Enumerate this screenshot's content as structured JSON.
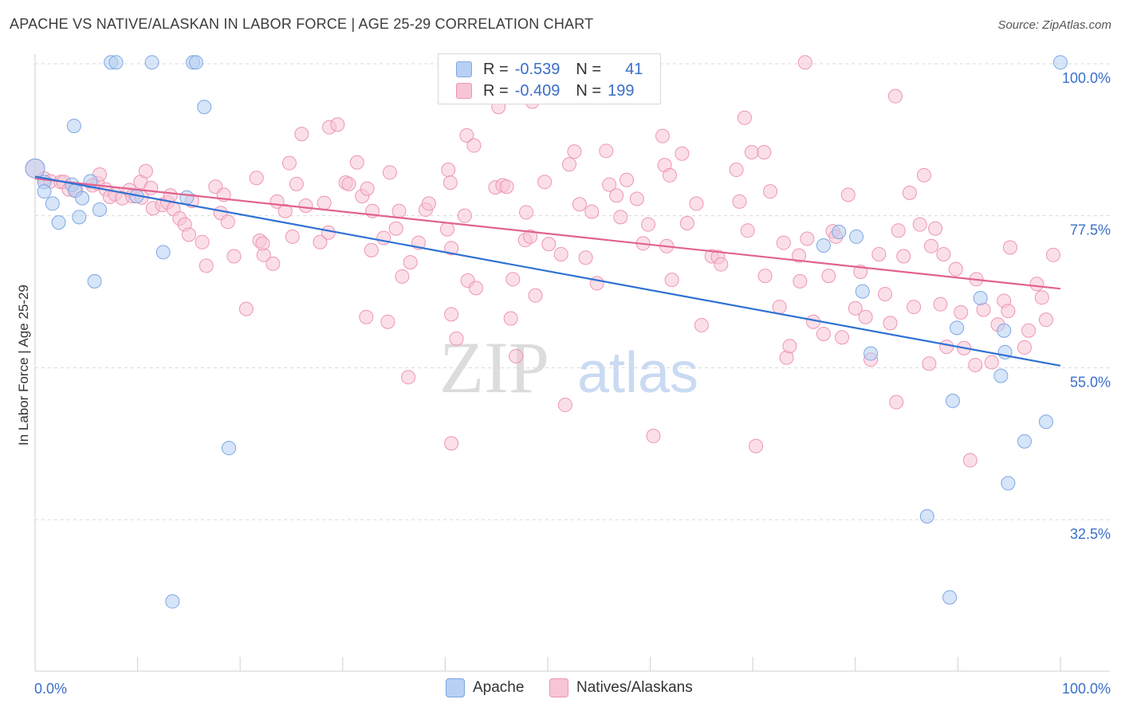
{
  "title": "APACHE VS NATIVE/ALASKAN IN LABOR FORCE | AGE 25-29 CORRELATION CHART",
  "source": "Source: ZipAtlas.com",
  "colors": {
    "apache_fill": "#b7d0f3",
    "apache_stroke": "#7ea7e3",
    "apache_line": "#2e72d2",
    "native_fill": "#f8c5d6",
    "native_stroke": "#ee95b4",
    "native_line": "#e2628f",
    "grid": "#d9d9d9",
    "axis_label": "#3a6fc9"
  },
  "legend": {
    "apache": {
      "r_label": "R =",
      "r_value": "-0.539",
      "n_label": "N =",
      "n_value": "41"
    },
    "native": {
      "r_label": "R =",
      "r_value": "-0.409",
      "n_label": "N =",
      "n_value": "199"
    }
  },
  "chart_data": {
    "type": "scatter",
    "title": "APACHE VS NATIVE/ALASKAN IN LABOR FORCE | AGE 25-29 CORRELATION CHART",
    "xlabel": "",
    "ylabel": "In Labor Force | Age 25-29",
    "xlim": [
      0,
      100
    ],
    "ylim": [
      10,
      100
    ],
    "x_tick_labels": [
      "0.0%",
      "100.0%"
    ],
    "y_ticks": [
      32.5,
      55.0,
      77.5,
      100.0
    ],
    "y_tick_labels": [
      "32.5%",
      "55.0%",
      "77.5%",
      "100.0%"
    ],
    "grid": true,
    "legend_position": "top-center",
    "series": [
      {
        "name": "Apache",
        "trend": {
          "x": [
            0,
            100
          ],
          "y": [
            83.3,
            55.3
          ]
        },
        "points": [
          [
            0,
            84.5
          ],
          [
            0.9,
            82.5
          ],
          [
            0.9,
            81.1
          ],
          [
            1.7,
            79.3
          ],
          [
            2.3,
            76.5
          ],
          [
            3.6,
            82.1
          ],
          [
            3.9,
            81.2
          ],
          [
            3.8,
            90.8
          ],
          [
            4.3,
            77.3
          ],
          [
            4.6,
            80.1
          ],
          [
            5.4,
            82.6
          ],
          [
            5.8,
            67.8
          ],
          [
            6.3,
            78.4
          ],
          [
            7.4,
            100.2
          ],
          [
            7.9,
            100.2
          ],
          [
            9.9,
            80.4
          ],
          [
            11.4,
            100.2
          ],
          [
            12.5,
            72.1
          ],
          [
            14.8,
            80.2
          ],
          [
            15.4,
            100.2
          ],
          [
            15.7,
            100.2
          ],
          [
            16.5,
            93.6
          ],
          [
            18.9,
            43.1
          ],
          [
            13.4,
            20.4
          ],
          [
            76.9,
            73.1
          ],
          [
            78.4,
            75.1
          ],
          [
            80.1,
            74.4
          ],
          [
            80.7,
            66.3
          ],
          [
            81.5,
            57.1
          ],
          [
            87.0,
            33.0
          ],
          [
            89.9,
            60.9
          ],
          [
            89.5,
            50.1
          ],
          [
            92.2,
            65.3
          ],
          [
            94.2,
            53.8
          ],
          [
            94.6,
            57.3
          ],
          [
            94.5,
            60.5
          ],
          [
            96.5,
            44.1
          ],
          [
            98.6,
            47.0
          ],
          [
            89.2,
            21.0
          ],
          [
            94.9,
            37.9
          ],
          [
            100,
            100.2
          ]
        ]
      },
      {
        "name": "Natives/Alaskans",
        "trend": {
          "x": [
            0,
            100
          ],
          "y": [
            83.0,
            66.7
          ]
        },
        "points": [
          [
            0,
            84.5
          ],
          [
            0.9,
            83.0
          ],
          [
            1.5,
            82.6
          ],
          [
            2.5,
            82.5
          ],
          [
            2.8,
            82.5
          ],
          [
            3.3,
            81.4
          ],
          [
            4.0,
            81.3
          ],
          [
            5.6,
            82.0
          ],
          [
            6.1,
            82.3
          ],
          [
            6.3,
            83.6
          ],
          [
            6.9,
            81.4
          ],
          [
            7.3,
            80.3
          ],
          [
            7.8,
            80.7
          ],
          [
            8.5,
            80.1
          ],
          [
            9.2,
            81.3
          ],
          [
            9.5,
            80.4
          ],
          [
            10.3,
            82.5
          ],
          [
            10.4,
            80.2
          ],
          [
            10.8,
            84.1
          ],
          [
            11.3,
            81.6
          ],
          [
            11.5,
            78.6
          ],
          [
            12.4,
            79.1
          ],
          [
            12.9,
            79.5
          ],
          [
            13.2,
            80.5
          ],
          [
            13.5,
            78.5
          ],
          [
            14.1,
            77.1
          ],
          [
            14.6,
            76.2
          ],
          [
            15.0,
            74.7
          ],
          [
            15.3,
            79.7
          ],
          [
            16.3,
            73.6
          ],
          [
            16.7,
            70.1
          ],
          [
            17.6,
            81.8
          ],
          [
            18.1,
            77.9
          ],
          [
            18.4,
            80.6
          ],
          [
            18.8,
            76.6
          ],
          [
            19.4,
            71.5
          ],
          [
            20.6,
            63.7
          ],
          [
            21.6,
            83.1
          ],
          [
            21.9,
            73.8
          ],
          [
            22.3,
            71.7
          ],
          [
            22.2,
            73.4
          ],
          [
            23.2,
            70.4
          ],
          [
            23.6,
            79.6
          ],
          [
            24.4,
            78.2
          ],
          [
            24.8,
            85.3
          ],
          [
            25.1,
            74.4
          ],
          [
            25.5,
            82.2
          ],
          [
            26.0,
            89.6
          ],
          [
            26.4,
            79.0
          ],
          [
            27.8,
            73.6
          ],
          [
            28.2,
            79.4
          ],
          [
            28.6,
            75.0
          ],
          [
            28.7,
            90.6
          ],
          [
            29.5,
            91.0
          ],
          [
            30.3,
            82.4
          ],
          [
            30.6,
            82.2
          ],
          [
            31.4,
            85.4
          ],
          [
            31.9,
            80.4
          ],
          [
            32.4,
            81.5
          ],
          [
            32.8,
            72.4
          ],
          [
            32.9,
            78.2
          ],
          [
            32.3,
            62.5
          ],
          [
            34.0,
            74.2
          ],
          [
            34.4,
            61.8
          ],
          [
            34.6,
            83.9
          ],
          [
            35.2,
            75.6
          ],
          [
            35.8,
            68.5
          ],
          [
            35.5,
            78.2
          ],
          [
            36.4,
            53.6
          ],
          [
            36.6,
            70.6
          ],
          [
            37.4,
            73.5
          ],
          [
            38.1,
            78.4
          ],
          [
            38.4,
            79.3
          ],
          [
            40.2,
            75.5
          ],
          [
            40.3,
            84.3
          ],
          [
            40.5,
            82.4
          ],
          [
            40.6,
            72.7
          ],
          [
            40.6,
            62.9
          ],
          [
            40.6,
            43.8
          ],
          [
            41.1,
            59.3
          ],
          [
            41.9,
            77.5
          ],
          [
            42.1,
            89.4
          ],
          [
            42.2,
            67.9
          ],
          [
            42.8,
            87.9
          ],
          [
            43.0,
            66.8
          ],
          [
            44.9,
            81.7
          ],
          [
            45.6,
            82.0
          ],
          [
            46.0,
            81.8
          ],
          [
            46.4,
            62.3
          ],
          [
            46.6,
            68.1
          ],
          [
            46.9,
            56.7
          ],
          [
            47.8,
            73.9
          ],
          [
            47.9,
            78.0
          ],
          [
            48.8,
            65.7
          ],
          [
            48.3,
            74.4
          ],
          [
            49.7,
            82.5
          ],
          [
            50.1,
            73.3
          ],
          [
            51.3,
            71.8
          ],
          [
            51.7,
            49.5
          ],
          [
            52.1,
            85.1
          ],
          [
            52.6,
            87.0
          ],
          [
            53.1,
            79.2
          ],
          [
            53.7,
            71.3
          ],
          [
            54.3,
            78.1
          ],
          [
            54.8,
            67.5
          ],
          [
            55.7,
            87.1
          ],
          [
            56.0,
            82.1
          ],
          [
            56.7,
            80.5
          ],
          [
            57.1,
            77.3
          ],
          [
            57.7,
            82.8
          ],
          [
            58.7,
            80.0
          ],
          [
            59.3,
            73.4
          ],
          [
            59.8,
            76.2
          ],
          [
            60.3,
            44.9
          ],
          [
            61.2,
            89.3
          ],
          [
            61.4,
            85.0
          ],
          [
            61.6,
            73.0
          ],
          [
            61.9,
            83.5
          ],
          [
            62.1,
            68.0
          ],
          [
            63.1,
            86.7
          ],
          [
            63.6,
            76.4
          ],
          [
            64.5,
            79.3
          ],
          [
            65.0,
            61.3
          ],
          [
            66.0,
            71.5
          ],
          [
            66.6,
            71.4
          ],
          [
            66.9,
            70.3
          ],
          [
            68.4,
            84.3
          ],
          [
            68.7,
            79.6
          ],
          [
            69.2,
            92.0
          ],
          [
            69.5,
            75.3
          ],
          [
            69.9,
            86.9
          ],
          [
            70.3,
            43.4
          ],
          [
            71.1,
            86.9
          ],
          [
            71.2,
            68.6
          ],
          [
            71.7,
            81.1
          ],
          [
            72.6,
            64.0
          ],
          [
            73.0,
            73.5
          ],
          [
            73.3,
            56.5
          ],
          [
            73.6,
            58.2
          ],
          [
            74.5,
            71.6
          ],
          [
            74.6,
            67.8
          ],
          [
            75.3,
            74.1
          ],
          [
            75.9,
            61.8
          ],
          [
            76.9,
            60.0
          ],
          [
            77.4,
            68.6
          ],
          [
            77.8,
            75.2
          ],
          [
            78.1,
            74.4
          ],
          [
            78.7,
            59.5
          ],
          [
            79.3,
            80.6
          ],
          [
            80.0,
            63.8
          ],
          [
            80.5,
            69.2
          ],
          [
            81.0,
            62.5
          ],
          [
            81.5,
            56.2
          ],
          [
            82.3,
            71.8
          ],
          [
            82.9,
            65.9
          ],
          [
            83.4,
            61.6
          ],
          [
            84.0,
            49.9
          ],
          [
            84.2,
            75.3
          ],
          [
            84.7,
            71.5
          ],
          [
            85.3,
            80.9
          ],
          [
            85.7,
            64.0
          ],
          [
            86.3,
            76.2
          ],
          [
            86.7,
            83.5
          ],
          [
            87.2,
            55.6
          ],
          [
            87.4,
            73.0
          ],
          [
            87.8,
            75.6
          ],
          [
            88.3,
            64.4
          ],
          [
            88.6,
            71.8
          ],
          [
            88.9,
            58.1
          ],
          [
            89.8,
            69.6
          ],
          [
            90.3,
            63.2
          ],
          [
            90.6,
            57.9
          ],
          [
            91.2,
            41.3
          ],
          [
            91.8,
            68.1
          ],
          [
            91.7,
            55.4
          ],
          [
            92.5,
            63.6
          ],
          [
            93.3,
            55.8
          ],
          [
            93.9,
            61.4
          ],
          [
            94.5,
            64.9
          ],
          [
            94.9,
            63.4
          ],
          [
            95.1,
            72.8
          ],
          [
            96.5,
            58.0
          ],
          [
            96.9,
            60.5
          ],
          [
            97.7,
            67.4
          ],
          [
            98.2,
            65.4
          ],
          [
            98.6,
            62.1
          ],
          [
            99.3,
            71.7
          ],
          [
            57.2,
            96.5
          ],
          [
            75.1,
            100.2
          ],
          [
            83.9,
            95.2
          ],
          [
            48.5,
            94.4
          ],
          [
            45.2,
            93.6
          ],
          [
            55.2,
            100.2
          ],
          [
            55.8,
            100.2
          ]
        ]
      }
    ]
  },
  "labels": {
    "x_min": "0.0%",
    "x_max": "100.0%",
    "watermark_a": "ZIP",
    "watermark_b": "atlas"
  },
  "bottom_legend": {
    "apache": "Apache",
    "native": "Natives/Alaskans"
  }
}
